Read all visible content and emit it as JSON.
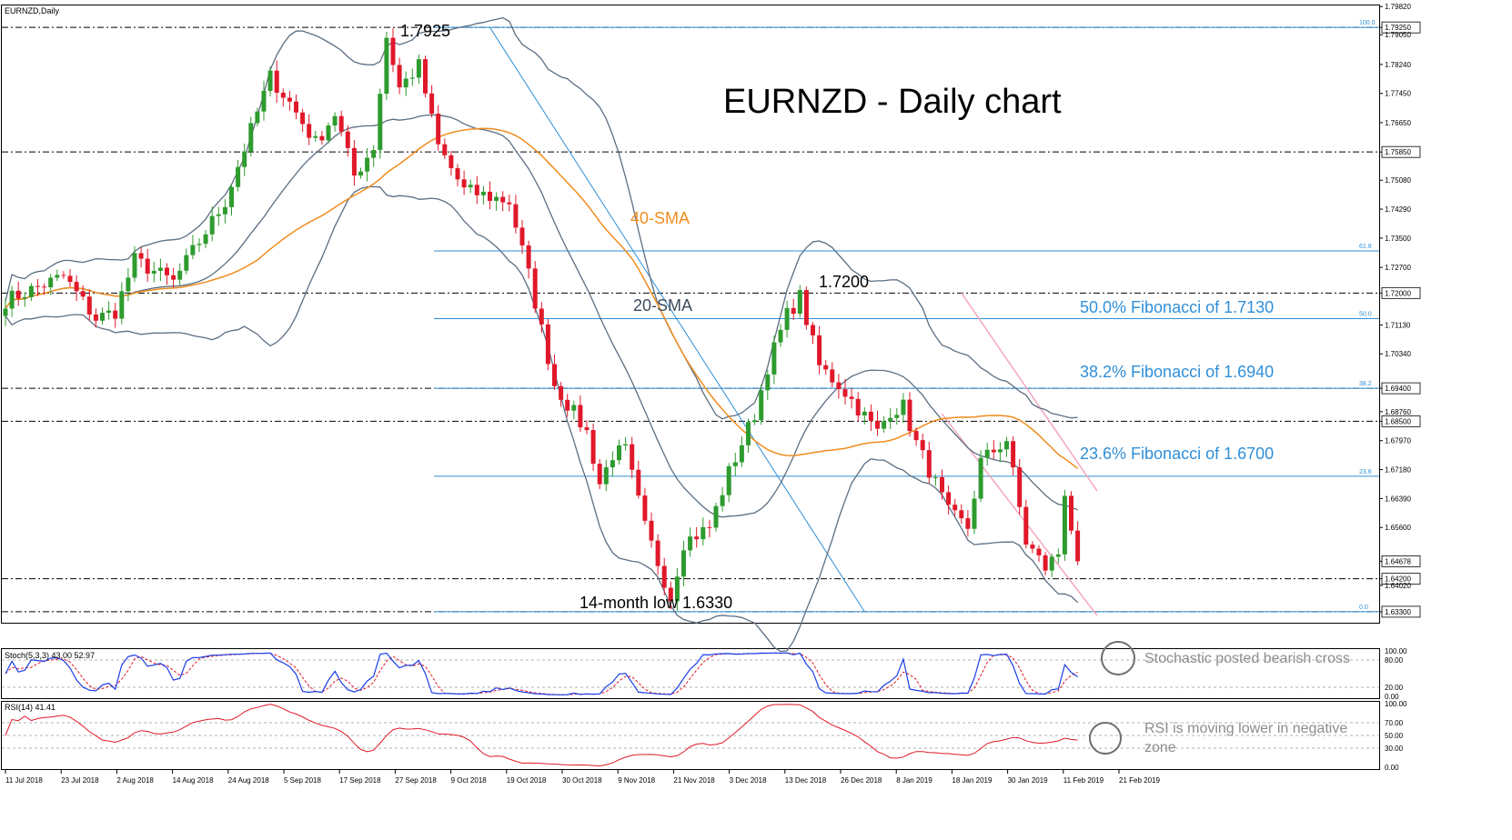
{
  "window": {
    "symbol": "EURNZD,Daily",
    "title": "EURNZD - Daily chart"
  },
  "colors": {
    "background": "#ffffff",
    "bull_candle": "#2e9b2e",
    "bear_candle": "#e0182a",
    "bollinger": "#5b6e82",
    "sma40": "#f08c1e",
    "fib_line": "#2f8fd8",
    "fib_text": "#2f8fd8",
    "channel": "#f4a6be",
    "stoch_main": "#1a3ee6",
    "stoch_signal": "#e0182a",
    "rsi": "#e0182a",
    "grey_text": "#8c8c8c"
  },
  "chart_data": [
    {
      "type": "candlestick",
      "title": "EURNZD - Daily chart",
      "symbol": "EURNZD,Daily",
      "ylim": [
        1.63,
        1.7985
      ],
      "y_ticks": [
        "1.79820",
        "1.79250",
        "1.79050",
        "1.78240",
        "1.77450",
        "1.76650",
        "1.75850",
        "1.75080",
        "1.74290",
        "1.73500",
        "1.72700",
        "1.72000",
        "1.71130",
        "1.70340",
        "1.69400",
        "1.68760",
        "1.68500",
        "1.67970",
        "1.67180",
        "1.66390",
        "1.65600",
        "1.64678",
        "1.64200",
        "1.64020",
        "1.63300"
      ],
      "x_ticks": [
        "11 Jul 2018",
        "23 Jul 2018",
        "2 Aug 2018",
        "14 Aug 2018",
        "24 Aug 2018",
        "5 Sep 2018",
        "17 Sep 2018",
        "27 Sep 2018",
        "9 Oct 2018",
        "19 Oct 2018",
        "30 Oct 2018",
        "9 Nov 2018",
        "21 Nov 2018",
        "3 Dec 2018",
        "13 Dec 2018",
        "26 Dec 2018",
        "8 Jan 2019",
        "18 Jan 2019",
        "30 Jan 2019",
        "11 Feb 2019",
        "21 Feb 2019"
      ],
      "series": [
        {
          "name": "20-SMA",
          "label": "20-SMA"
        },
        {
          "name": "40-SMA",
          "label": "40-SMA"
        }
      ],
      "horizontal_levels": [
        1.7925,
        1.7585,
        1.72,
        1.694,
        1.685,
        1.642,
        1.633
      ],
      "current_price": 1.64678,
      "fibonacci": {
        "levels": [
          {
            "pct": "100.0",
            "value": 1.7925
          },
          {
            "pct": "61.8",
            "value": 1.7315
          },
          {
            "pct": "50.0",
            "value": 1.713
          },
          {
            "pct": "38.2",
            "value": 1.694
          },
          {
            "pct": "23.6",
            "value": 1.67
          },
          {
            "pct": "0.0",
            "value": 1.633
          }
        ]
      },
      "annotations": {
        "high": "1.7925",
        "mid_high": "1.7200",
        "low": "14-month low 1.6330",
        "sma40": "40-SMA",
        "sma20": "20-SMA",
        "fib50": "50.0% Fibonacci of 1.7130",
        "fib382": "38.2% Fibonacci of 1.6940",
        "fib236": "23.6% Fibonacci of 1.6700"
      }
    },
    {
      "type": "line",
      "title": "Stoch(5,3,3) 43.00 52.97",
      "ylim": [
        0,
        100
      ],
      "y_ticks": [
        "100.00",
        "80.00",
        "20.00",
        "0.00"
      ],
      "main_last": 43.0,
      "signal_last": 52.97,
      "annotation": "Stochastic posted bearish cross"
    },
    {
      "type": "line",
      "title": "RSI(14) 41.41",
      "ylim": [
        0,
        100
      ],
      "y_ticks": [
        "100.00",
        "70.00",
        "50.00",
        "30.00",
        "0.00"
      ],
      "last": 41.41,
      "annotation_lines": [
        "RSI is moving lower in negative",
        "zone"
      ]
    }
  ]
}
